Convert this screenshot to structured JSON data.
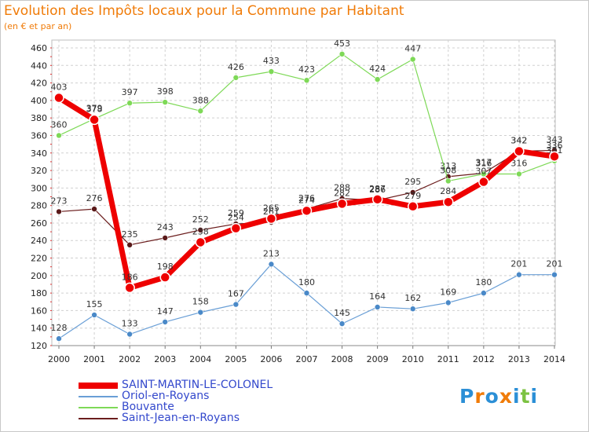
{
  "title": "Evolution des Impôts locaux pour la Commune par Habitant",
  "subtitle": "(en € et par an)",
  "logo": {
    "text": "Proxiti",
    "letters": [
      "P",
      "r",
      "o",
      "x",
      "i",
      "t",
      "i"
    ],
    "colors": [
      "#2b8fd6",
      "#f07b08",
      "#2b8fd6",
      "#f07b08",
      "#2b8fd6",
      "#7cc242",
      "#2b8fd6"
    ]
  },
  "chart_data": {
    "type": "line",
    "title": "Evolution des Impôts locaux pour la Commune par Habitant",
    "subtitle": "(en € et par an)",
    "x": [
      "2000",
      "2001",
      "2002",
      "2003",
      "2004",
      "2005",
      "2006",
      "2007",
      "2008",
      "2009",
      "2010",
      "2011",
      "2012",
      "2013",
      "2014"
    ],
    "ylim": [
      120,
      460
    ],
    "yticks": [
      120,
      140,
      160,
      180,
      200,
      220,
      240,
      260,
      280,
      300,
      320,
      340,
      360,
      380,
      400,
      420,
      440,
      460
    ],
    "grid": true,
    "legend_position": "bottom-left",
    "series": [
      {
        "name": "Saint-Jean-en-Royans",
        "color": "#6b1d1d",
        "marker": "#5a1a1a",
        "width": 1.2,
        "radius": 3.5,
        "values": [
          273,
          276,
          235,
          243,
          252,
          259,
          261,
          276,
          288,
          286,
          295,
          313,
          317,
          342,
          343
        ]
      },
      {
        "name": "Bouvante",
        "color": "#7ed957",
        "marker": "#7ed957",
        "width": 1.2,
        "radius": 3.5,
        "values": [
          360,
          379,
          397,
          398,
          388,
          426,
          433,
          423,
          453,
          424,
          447,
          308,
          316,
          316,
          331
        ]
      },
      {
        "name": "Oriol-en-Royans",
        "color": "#6a9fd6",
        "marker": "#4a89c8",
        "width": 1.2,
        "radius": 3.5,
        "values": [
          128,
          155,
          133,
          147,
          158,
          167,
          213,
          180,
          145,
          164,
          162,
          169,
          180,
          201,
          201
        ]
      },
      {
        "name": "SAINT-MARTIN-LE-COLONEL",
        "color": "#ee0000",
        "marker": "#ee0000",
        "width": 7,
        "radius": 6,
        "values": [
          403,
          378,
          186,
          198,
          238,
          254,
          265,
          274,
          282,
          287,
          279,
          284,
          307,
          342,
          336
        ]
      }
    ],
    "legend": [
      "SAINT-MARTIN-LE-COLONEL",
      "Oriol-en-Royans",
      "Bouvante",
      "Saint-Jean-en-Royans"
    ]
  }
}
